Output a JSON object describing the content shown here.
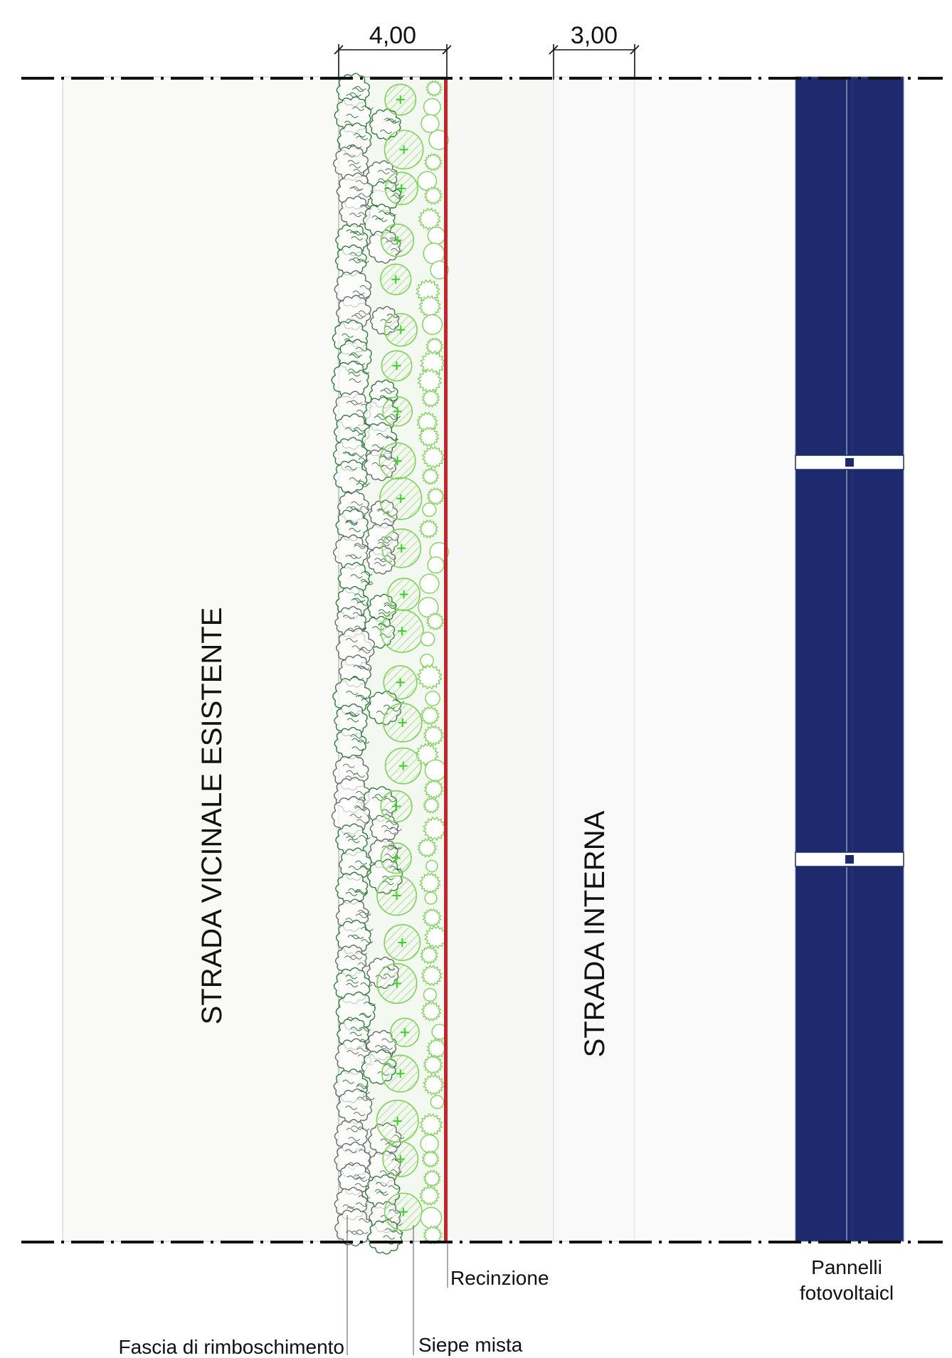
{
  "dimensions": {
    "hedge_band_width": "4,00",
    "road_width": "3,00"
  },
  "labels": {
    "existing_road": "STRADA VICINALE ESISTENTE",
    "internal_road": "STRADA INTERNA",
    "fence": "Recinzione",
    "reforestation_band": "Fascia di rimboschimento",
    "mixed_hedge": "Siepe mista",
    "pv_panels_line1": "Pannelli",
    "pv_panels_line2": "fotovoltaicl"
  },
  "colors": {
    "fence": "#c8232b",
    "panel": "#1e2a6e",
    "panel_border": "#6f7fa8",
    "tree_dark": "#2f7a3a",
    "tree_gray": "#5e6b66",
    "shrub_light": "#7fd35a",
    "shrub_bright": "#3bd02a",
    "ground": "#f9faf8",
    "hedge_ground": "#f3f8f0"
  },
  "legend_icons": {
    "tree_canopy": "tree-canopy-icon",
    "shrub_circle": "shrub-circle-icon",
    "hatched_tree": "hatched-tree-icon"
  }
}
